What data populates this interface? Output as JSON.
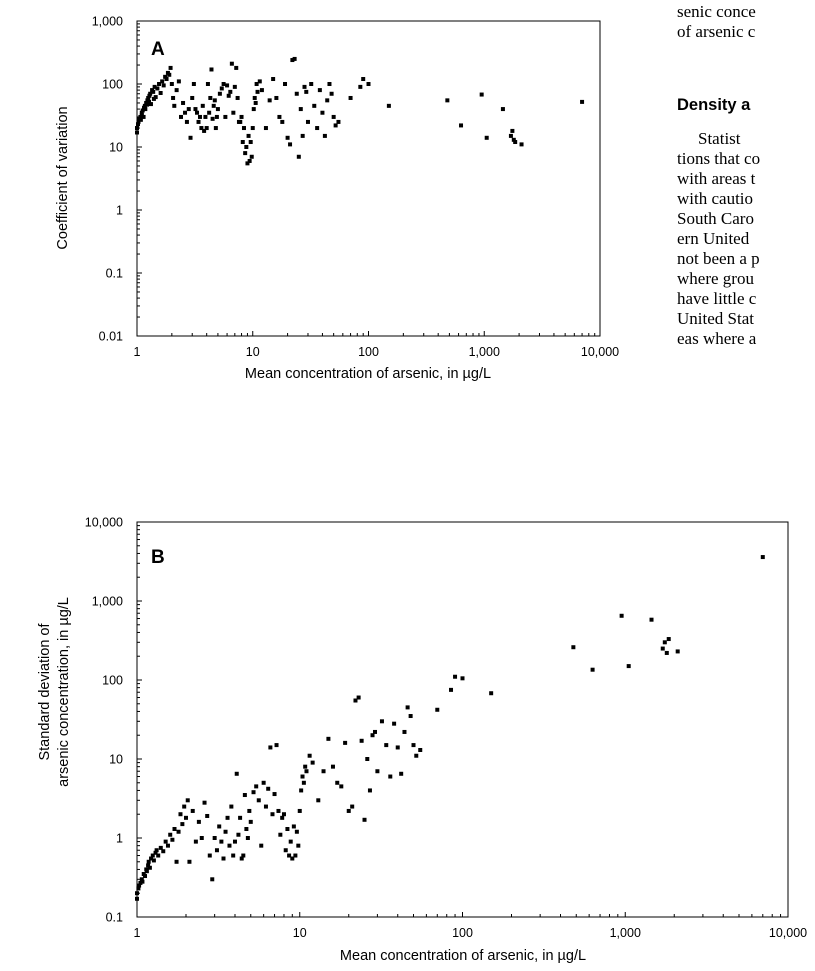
{
  "page": {
    "para1": [
      "senic conce",
      "of arsenic c"
    ],
    "heading": "Density a",
    "para2": [
      "Statist",
      "tions that co",
      "with areas t",
      "with cautio",
      "South Caro",
      "ern United",
      "not been a p",
      "where grou",
      "have little c",
      "United Stat",
      "eas where a"
    ]
  },
  "chart_data": [
    {
      "id": "A",
      "type": "scatter",
      "panel_label": "A",
      "xlabel": "Mean concentration of arsenic, in µg/L",
      "ylabel": "Coefficient of variation",
      "xscale": "log",
      "yscale": "log",
      "xlim": [
        1,
        10000
      ],
      "ylim": [
        0.01,
        1000
      ],
      "xticks": [
        "1",
        "10",
        "100",
        "1,000",
        "10,000"
      ],
      "yticks": [
        "0.01",
        "0.1",
        "1",
        "10",
        "100",
        "1,000"
      ],
      "grid": false,
      "points": [
        [
          1.0,
          17
        ],
        [
          1.0,
          20
        ],
        [
          1.02,
          23
        ],
        [
          1.03,
          25
        ],
        [
          1.05,
          28
        ],
        [
          1.07,
          30
        ],
        [
          1.08,
          27
        ],
        [
          1.1,
          32
        ],
        [
          1.1,
          35
        ],
        [
          1.12,
          38
        ],
        [
          1.14,
          30
        ],
        [
          1.15,
          42
        ],
        [
          1.17,
          45
        ],
        [
          1.18,
          40
        ],
        [
          1.2,
          50
        ],
        [
          1.22,
          47
        ],
        [
          1.23,
          55
        ],
        [
          1.25,
          60
        ],
        [
          1.27,
          52
        ],
        [
          1.28,
          65
        ],
        [
          1.3,
          70
        ],
        [
          1.32,
          48
        ],
        [
          1.35,
          80
        ],
        [
          1.38,
          75
        ],
        [
          1.4,
          58
        ],
        [
          1.42,
          90
        ],
        [
          1.45,
          62
        ],
        [
          1.5,
          85
        ],
        [
          1.55,
          100
        ],
        [
          1.6,
          72
        ],
        [
          1.65,
          110
        ],
        [
          1.7,
          95
        ],
        [
          1.75,
          130
        ],
        [
          1.8,
          120
        ],
        [
          1.85,
          150
        ],
        [
          1.9,
          140
        ],
        [
          1.95,
          180
        ],
        [
          2.0,
          100
        ],
        [
          2.05,
          60
        ],
        [
          2.1,
          45
        ],
        [
          2.2,
          80
        ],
        [
          2.3,
          110
        ],
        [
          2.4,
          30
        ],
        [
          2.5,
          50
        ],
        [
          2.6,
          35
        ],
        [
          2.7,
          25
        ],
        [
          2.8,
          40
        ],
        [
          2.9,
          14
        ],
        [
          3.0,
          60
        ],
        [
          3.1,
          100
        ],
        [
          3.2,
          40
        ],
        [
          3.3,
          35
        ],
        [
          3.4,
          25
        ],
        [
          3.5,
          30
        ],
        [
          3.6,
          20
        ],
        [
          3.7,
          45
        ],
        [
          3.8,
          18
        ],
        [
          3.9,
          30
        ],
        [
          4.0,
          20
        ],
        [
          4.1,
          100
        ],
        [
          4.2,
          35
        ],
        [
          4.3,
          60
        ],
        [
          4.4,
          170
        ],
        [
          4.5,
          28
        ],
        [
          4.6,
          45
        ],
        [
          4.7,
          55
        ],
        [
          4.8,
          20
        ],
        [
          4.9,
          30
        ],
        [
          5.0,
          40
        ],
        [
          5.2,
          70
        ],
        [
          5.4,
          85
        ],
        [
          5.6,
          100
        ],
        [
          5.8,
          30
        ],
        [
          6.0,
          95
        ],
        [
          6.2,
          65
        ],
        [
          6.4,
          75
        ],
        [
          6.6,
          210
        ],
        [
          6.8,
          35
        ],
        [
          7.0,
          90
        ],
        [
          7.2,
          180
        ],
        [
          7.4,
          60
        ],
        [
          7.6,
          25
        ],
        [
          7.8,
          25
        ],
        [
          8.0,
          30
        ],
        [
          8.2,
          12
        ],
        [
          8.4,
          20
        ],
        [
          8.6,
          8
        ],
        [
          8.8,
          10
        ],
        [
          9.0,
          5.5
        ],
        [
          9.2,
          15
        ],
        [
          9.4,
          6
        ],
        [
          9.6,
          12
        ],
        [
          9.8,
          7
        ],
        [
          10.0,
          20
        ],
        [
          10.2,
          40
        ],
        [
          10.4,
          60
        ],
        [
          10.6,
          50
        ],
        [
          10.8,
          100
        ],
        [
          11.0,
          75
        ],
        [
          11.5,
          110
        ],
        [
          12.0,
          80
        ],
        [
          13.0,
          20
        ],
        [
          14.0,
          55
        ],
        [
          15.0,
          120
        ],
        [
          16.0,
          60
        ],
        [
          17.0,
          30
        ],
        [
          18.0,
          25
        ],
        [
          19.0,
          100
        ],
        [
          20.0,
          14
        ],
        [
          21.0,
          11
        ],
        [
          22.0,
          240
        ],
        [
          23.0,
          250
        ],
        [
          24.0,
          70
        ],
        [
          25.0,
          7
        ],
        [
          26.0,
          40
        ],
        [
          27.0,
          15
        ],
        [
          28.0,
          90
        ],
        [
          29.0,
          75
        ],
        [
          30.0,
          25
        ],
        [
          32.0,
          100
        ],
        [
          34.0,
          45
        ],
        [
          36.0,
          20
        ],
        [
          38.0,
          80
        ],
        [
          40.0,
          35
        ],
        [
          42.0,
          15
        ],
        [
          44.0,
          55
        ],
        [
          46.0,
          100
        ],
        [
          48.0,
          70
        ],
        [
          50.0,
          30
        ],
        [
          52.0,
          22
        ],
        [
          55.0,
          25
        ],
        [
          70.0,
          60
        ],
        [
          85.0,
          90
        ],
        [
          90.0,
          120
        ],
        [
          100.0,
          100
        ],
        [
          150.0,
          45
        ],
        [
          480.0,
          55
        ],
        [
          630.0,
          22
        ],
        [
          950.0,
          68
        ],
        [
          1050.0,
          14
        ],
        [
          1450.0,
          40
        ],
        [
          1700.0,
          15
        ],
        [
          1750.0,
          18
        ],
        [
          1800.0,
          13
        ],
        [
          1850.0,
          12
        ],
        [
          2100.0,
          11
        ],
        [
          7000.0,
          52
        ]
      ]
    },
    {
      "id": "B",
      "type": "scatter",
      "panel_label": "B",
      "xlabel": "Mean concentration of arsenic, in µg/L",
      "ylabel": [
        "Standard deviation of",
        "arsenic concentration, in µg/L"
      ],
      "xscale": "log",
      "yscale": "log",
      "xlim": [
        1,
        10000
      ],
      "ylim": [
        0.1,
        10000
      ],
      "xticks": [
        "1",
        "10",
        "100",
        "1,000",
        "10,000"
      ],
      "yticks": [
        "0.1",
        "1",
        "10",
        "100",
        "1,000",
        "10,000"
      ],
      "grid": false,
      "points": [
        [
          1.0,
          0.17
        ],
        [
          1.0,
          0.2
        ],
        [
          1.02,
          0.23
        ],
        [
          1.03,
          0.25
        ],
        [
          1.05,
          0.27
        ],
        [
          1.07,
          0.3
        ],
        [
          1.08,
          0.28
        ],
        [
          1.1,
          0.35
        ],
        [
          1.12,
          0.33
        ],
        [
          1.14,
          0.4
        ],
        [
          1.15,
          0.38
        ],
        [
          1.17,
          0.45
        ],
        [
          1.18,
          0.5
        ],
        [
          1.2,
          0.42
        ],
        [
          1.22,
          0.55
        ],
        [
          1.25,
          0.6
        ],
        [
          1.27,
          0.52
        ],
        [
          1.3,
          0.65
        ],
        [
          1.32,
          0.7
        ],
        [
          1.35,
          0.6
        ],
        [
          1.4,
          0.75
        ],
        [
          1.45,
          0.68
        ],
        [
          1.5,
          0.9
        ],
        [
          1.55,
          0.8
        ],
        [
          1.6,
          1.1
        ],
        [
          1.65,
          0.95
        ],
        [
          1.7,
          1.3
        ],
        [
          1.75,
          0.5
        ],
        [
          1.8,
          1.2
        ],
        [
          1.85,
          2.0
        ],
        [
          1.9,
          1.5
        ],
        [
          1.95,
          2.5
        ],
        [
          2.0,
          1.8
        ],
        [
          2.05,
          3.0
        ],
        [
          2.1,
          0.5
        ],
        [
          2.2,
          2.2
        ],
        [
          2.3,
          0.9
        ],
        [
          2.4,
          1.6
        ],
        [
          2.5,
          1.0
        ],
        [
          2.6,
          2.8
        ],
        [
          2.7,
          1.9
        ],
        [
          2.8,
          0.6
        ],
        [
          2.9,
          0.3
        ],
        [
          3.0,
          1.0
        ],
        [
          3.1,
          0.7
        ],
        [
          3.2,
          1.4
        ],
        [
          3.3,
          0.9
        ],
        [
          3.4,
          0.55
        ],
        [
          3.5,
          1.2
        ],
        [
          3.6,
          1.8
        ],
        [
          3.7,
          0.8
        ],
        [
          3.8,
          2.5
        ],
        [
          3.9,
          0.6
        ],
        [
          4.0,
          0.9
        ],
        [
          4.1,
          6.5
        ],
        [
          4.2,
          1.1
        ],
        [
          4.3,
          1.8
        ],
        [
          4.4,
          0.55
        ],
        [
          4.5,
          0.6
        ],
        [
          4.6,
          3.5
        ],
        [
          4.7,
          1.3
        ],
        [
          4.8,
          1.0
        ],
        [
          4.9,
          2.2
        ],
        [
          5.0,
          1.6
        ],
        [
          5.2,
          3.8
        ],
        [
          5.4,
          4.5
        ],
        [
          5.6,
          3.0
        ],
        [
          5.8,
          0.8
        ],
        [
          6.0,
          5.0
        ],
        [
          6.2,
          2.5
        ],
        [
          6.4,
          4.2
        ],
        [
          6.6,
          14
        ],
        [
          6.8,
          2.0
        ],
        [
          7.0,
          3.6
        ],
        [
          7.2,
          15
        ],
        [
          7.4,
          2.2
        ],
        [
          7.6,
          1.1
        ],
        [
          7.8,
          1.8
        ],
        [
          8.0,
          2.0
        ],
        [
          8.2,
          0.7
        ],
        [
          8.4,
          1.3
        ],
        [
          8.6,
          0.6
        ],
        [
          8.8,
          0.9
        ],
        [
          9.0,
          0.55
        ],
        [
          9.2,
          1.4
        ],
        [
          9.4,
          0.6
        ],
        [
          9.6,
          1.2
        ],
        [
          9.8,
          0.8
        ],
        [
          10.0,
          2.2
        ],
        [
          10.2,
          4.0
        ],
        [
          10.4,
          6.0
        ],
        [
          10.6,
          5.0
        ],
        [
          10.8,
          8.0
        ],
        [
          11.0,
          7.0
        ],
        [
          11.5,
          11
        ],
        [
          12.0,
          9.0
        ],
        [
          13.0,
          3.0
        ],
        [
          14.0,
          7.0
        ],
        [
          15.0,
          18
        ],
        [
          16.0,
          8.0
        ],
        [
          17.0,
          5.0
        ],
        [
          18.0,
          4.5
        ],
        [
          19.0,
          16
        ],
        [
          20.0,
          2.2
        ],
        [
          21.0,
          2.5
        ],
        [
          22.0,
          55
        ],
        [
          23.0,
          60
        ],
        [
          24.0,
          17
        ],
        [
          25.0,
          1.7
        ],
        [
          26.0,
          10
        ],
        [
          27.0,
          4.0
        ],
        [
          28.0,
          20
        ],
        [
          29.0,
          22
        ],
        [
          30.0,
          7.0
        ],
        [
          32.0,
          30
        ],
        [
          34.0,
          15
        ],
        [
          36.0,
          6.0
        ],
        [
          38.0,
          28
        ],
        [
          40.0,
          14
        ],
        [
          42.0,
          6.5
        ],
        [
          44.0,
          22
        ],
        [
          46.0,
          45
        ],
        [
          48.0,
          35
        ],
        [
          50.0,
          15
        ],
        [
          52.0,
          11
        ],
        [
          55.0,
          13
        ],
        [
          70.0,
          42
        ],
        [
          85.0,
          75
        ],
        [
          90.0,
          110
        ],
        [
          100.0,
          105
        ],
        [
          150.0,
          68
        ],
        [
          480.0,
          260
        ],
        [
          630.0,
          135
        ],
        [
          950.0,
          650
        ],
        [
          1050.0,
          150
        ],
        [
          1450.0,
          580
        ],
        [
          1700.0,
          250
        ],
        [
          1750.0,
          300
        ],
        [
          1800.0,
          220
        ],
        [
          1850.0,
          330
        ],
        [
          2100.0,
          230
        ],
        [
          7000.0,
          3600
        ]
      ]
    }
  ]
}
